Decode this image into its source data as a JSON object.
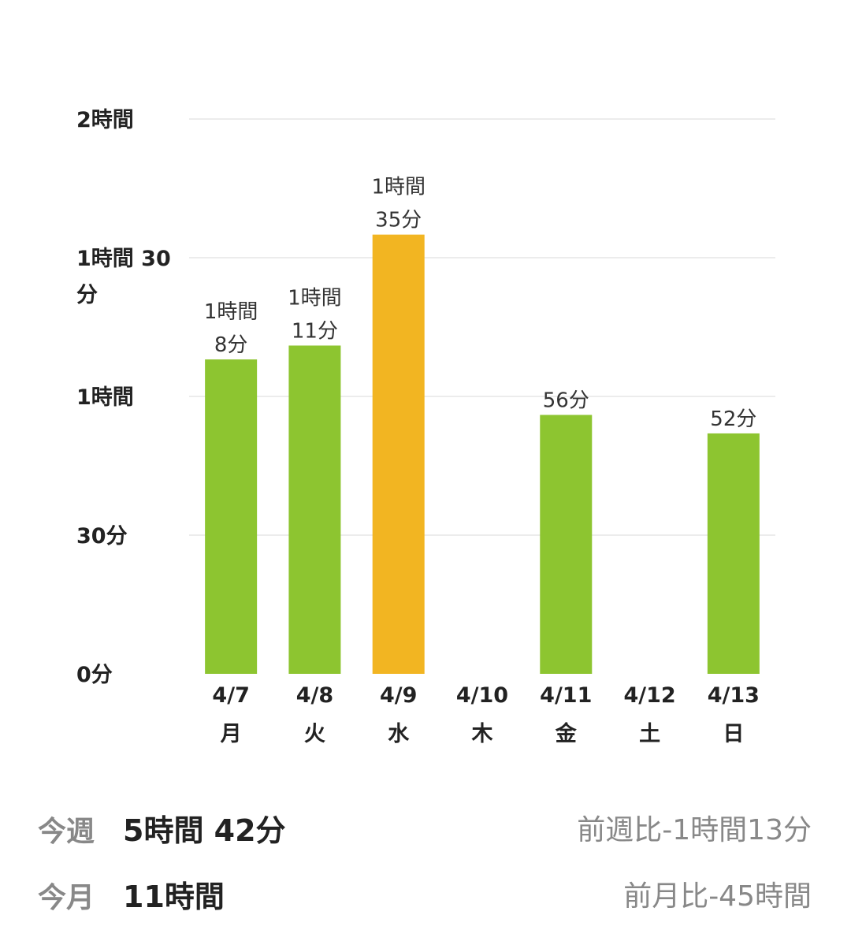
{
  "chart_data": {
    "type": "bar",
    "y_axis": {
      "ticks": [
        {
          "minutes": 120,
          "label": [
            "2時間"
          ]
        },
        {
          "minutes": 90,
          "label": [
            "1時間 30",
            "分"
          ]
        },
        {
          "minutes": 60,
          "label": [
            "1時間"
          ]
        },
        {
          "minutes": 30,
          "label": [
            "30分"
          ]
        },
        {
          "minutes": 0,
          "label": [
            "0分"
          ]
        }
      ],
      "ylim": [
        0,
        120
      ],
      "unit": "minutes"
    },
    "grid": true,
    "bars": [
      {
        "date": "4/7",
        "day": "月",
        "minutes": 68,
        "label": [
          "1時間",
          "8分"
        ],
        "color": "#8dc530"
      },
      {
        "date": "4/8",
        "day": "火",
        "minutes": 71,
        "label": [
          "1時間",
          "11分"
        ],
        "color": "#8dc530"
      },
      {
        "date": "4/9",
        "day": "水",
        "minutes": 95,
        "label": [
          "1時間",
          "35分"
        ],
        "color": "#f2b522"
      },
      {
        "date": "4/10",
        "day": "木",
        "minutes": 0,
        "label": [],
        "color": "#8dc530"
      },
      {
        "date": "4/11",
        "day": "金",
        "minutes": 56,
        "label": [
          "56分"
        ],
        "color": "#8dc530"
      },
      {
        "date": "4/12",
        "day": "土",
        "minutes": 0,
        "label": [],
        "color": "#8dc530"
      },
      {
        "date": "4/13",
        "day": "日",
        "minutes": 52,
        "label": [
          "52分"
        ],
        "color": "#8dc530"
      }
    ]
  },
  "summary": {
    "week": {
      "label": "今週",
      "value": "5時間 42分",
      "compare": "前週比-1時間13分"
    },
    "month": {
      "label": "今月",
      "value": "11時間",
      "compare": "前月比-45時間"
    }
  }
}
